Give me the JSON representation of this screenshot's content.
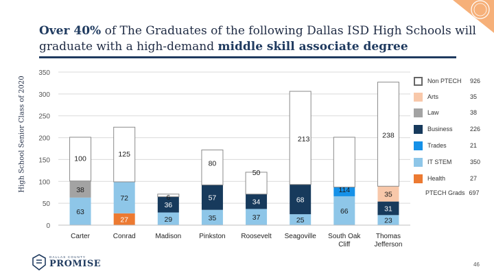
{
  "title": {
    "highlight1": "Over 40%",
    "part1": " of The Graduates of the following Dallas ISD High Schools will graduate with a high-demand ",
    "highlight2": "middle skill associate degree"
  },
  "colors": {
    "Non PTECH": "#ffffff",
    "Arts": "#f8c8aa",
    "Law": "#a3a3a3",
    "Business": "#173a5c",
    "Trades": "#1591e8",
    "IT STEM": "#8ec6e8",
    "Health": "#ec7a32",
    "accent": "#1f3a5f"
  },
  "legend": [
    {
      "name": "Non PTECH",
      "value": "926"
    },
    {
      "name": "Arts",
      "value": "35"
    },
    {
      "name": "Law",
      "value": "38"
    },
    {
      "name": "Business",
      "value": "226"
    },
    {
      "name": "Trades",
      "value": "21"
    },
    {
      "name": "IT STEM",
      "value": "350"
    },
    {
      "name": "Health",
      "value": "27"
    }
  ],
  "ptech_total": {
    "label": "PTECH Grads",
    "value": "697"
  },
  "chart_data": {
    "type": "bar",
    "stacked": true,
    "title": "Over 40% of The Graduates of the following Dallas ISD High Schools will graduate with a high-demand middle skill associate degree",
    "ylabel": "High School Senior Class of 2020",
    "xlabel": "",
    "ylim": [
      0,
      350
    ],
    "yticks": [
      0,
      50,
      100,
      150,
      200,
      250,
      300,
      350
    ],
    "categories": [
      "Carter",
      "Conrad",
      "Madison",
      "Pinkston",
      "Roosevelt",
      "Seagoville",
      "South Oak Cliff",
      "Thomas Jefferson"
    ],
    "series": [
      {
        "name": "Health",
        "values": [
          0,
          27,
          0,
          0,
          0,
          0,
          0,
          0
        ],
        "labels": [
          "",
          "27",
          "",
          "",
          "",
          "",
          "",
          ""
        ]
      },
      {
        "name": "IT STEM",
        "values": [
          63,
          72,
          29,
          35,
          37,
          25,
          66,
          23
        ],
        "labels": [
          "63",
          "72",
          "29",
          "35",
          "37",
          "25",
          "66",
          "23"
        ]
      },
      {
        "name": "Business",
        "values": [
          0,
          0,
          36,
          57,
          34,
          68,
          0,
          31
        ],
        "labels": [
          "",
          "",
          "36",
          "57",
          "34",
          "68",
          "",
          "31"
        ]
      },
      {
        "name": "Trades",
        "values": [
          0,
          0,
          0,
          0,
          0,
          0,
          21,
          0
        ],
        "labels": [
          "",
          "",
          "",
          "",
          "",
          "",
          "",
          ""
        ]
      },
      {
        "name": "Law",
        "values": [
          38,
          0,
          0,
          0,
          0,
          0,
          0,
          0
        ],
        "labels": [
          "38",
          "",
          "",
          "",
          "",
          "",
          "",
          ""
        ]
      },
      {
        "name": "Arts",
        "values": [
          0,
          0,
          0,
          0,
          0,
          0,
          0,
          35
        ],
        "labels": [
          "",
          "",
          "",
          "",
          "",
          "",
          "",
          "35"
        ]
      },
      {
        "name": "Non PTECH",
        "values": [
          100,
          125,
          6,
          80,
          50,
          213,
          114,
          238
        ],
        "labels": [
          "100",
          "125",
          "6",
          "80",
          "50",
          "213",
          "114",
          "238"
        ]
      }
    ]
  },
  "logo": {
    "line1": "DALLAS COUNTY",
    "line2": "PROMISE"
  },
  "page_number": "46"
}
